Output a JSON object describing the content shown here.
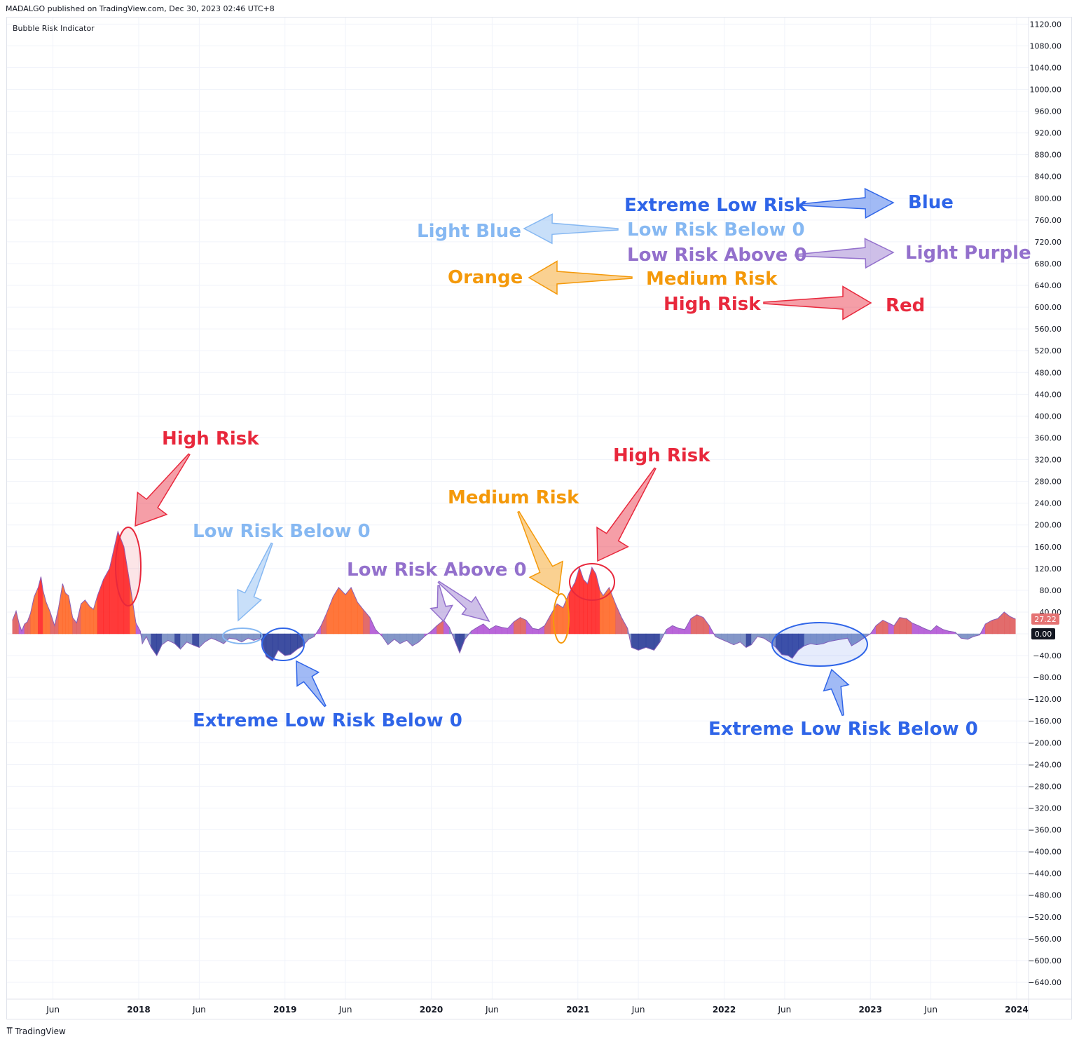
{
  "header": {
    "published": "MADALGO published on TradingView.com, Dec 30, 2023 02:46 UTC+8"
  },
  "indicator": {
    "title": "Bubble Risk Indicator"
  },
  "footer": {
    "brand": "TradingView",
    "logo_icon": "tradingview-logo-icon"
  },
  "colors": {
    "high": "#ff2a2a",
    "medium": "#ff6b2b",
    "lowAbove": "#b45ad6",
    "lowBelow": "#7a8fc4",
    "extremeLow": "#2e3f9a",
    "annot_blue": "#2f65e8",
    "annot_lightblue": "#86b8f2",
    "annot_purple": "#9370cc",
    "annot_orange": "#f4990a",
    "annot_red": "#e8283c"
  },
  "chart_data": {
    "type": "area",
    "ylim": [
      -660,
      1130
    ],
    "y_ticks": [
      1120,
      1080,
      1040,
      1000,
      960,
      920,
      880,
      840,
      800,
      760,
      720,
      680,
      640,
      600,
      560,
      520,
      480,
      440,
      400,
      360,
      320,
      280,
      240,
      200,
      160,
      120,
      80,
      40,
      0,
      -40,
      -80,
      -120,
      -160,
      -200,
      -240,
      -280,
      -320,
      -360,
      -400,
      -440,
      -480,
      -520,
      -560,
      -600,
      -640
    ],
    "x_ticks": [
      {
        "date": "2017-06-01",
        "label": "Jun",
        "bold": false
      },
      {
        "date": "2018-01-01",
        "label": "2018",
        "bold": true
      },
      {
        "date": "2018-06-01",
        "label": "Jun",
        "bold": false
      },
      {
        "date": "2019-01-01",
        "label": "2019",
        "bold": true
      },
      {
        "date": "2019-06-01",
        "label": "Jun",
        "bold": false
      },
      {
        "date": "2020-01-01",
        "label": "2020",
        "bold": true
      },
      {
        "date": "2020-06-01",
        "label": "Jun",
        "bold": false
      },
      {
        "date": "2021-01-01",
        "label": "2021",
        "bold": true
      },
      {
        "date": "2021-06-01",
        "label": "Jun",
        "bold": false
      },
      {
        "date": "2022-01-01",
        "label": "2022",
        "bold": true
      },
      {
        "date": "2022-06-01",
        "label": "Jun",
        "bold": false
      },
      {
        "date": "2023-01-01",
        "label": "2023",
        "bold": true
      },
      {
        "date": "2023-06-01",
        "label": "Jun",
        "bold": false
      },
      {
        "date": "2024-01-01",
        "label": "2024",
        "bold": true
      }
    ],
    "last_value_label": "27.22",
    "zero_label": "0.00",
    "series": [
      {
        "points": [
          [
            "2017-02-20",
            25
          ],
          [
            "2017-03-01",
            42
          ],
          [
            "2017-03-08",
            20
          ],
          [
            "2017-03-15",
            5
          ],
          [
            "2017-03-22",
            18
          ],
          [
            "2017-03-29",
            22
          ],
          [
            "2017-04-06",
            38
          ],
          [
            "2017-04-15",
            68
          ],
          [
            "2017-04-25",
            85
          ],
          [
            "2017-05-02",
            105
          ],
          [
            "2017-05-07",
            80
          ],
          [
            "2017-05-15",
            58
          ],
          [
            "2017-05-25",
            40
          ],
          [
            "2017-06-05",
            15
          ],
          [
            "2017-06-15",
            48
          ],
          [
            "2017-06-25",
            92
          ],
          [
            "2017-07-02",
            75
          ],
          [
            "2017-07-10",
            70
          ],
          [
            "2017-07-20",
            30
          ],
          [
            "2017-07-30",
            20
          ],
          [
            "2017-08-10",
            55
          ],
          [
            "2017-08-20",
            62
          ],
          [
            "2017-09-01",
            50
          ],
          [
            "2017-09-10",
            45
          ],
          [
            "2017-09-20",
            70
          ],
          [
            "2017-10-05",
            100
          ],
          [
            "2017-10-20",
            120
          ],
          [
            "2017-11-10",
            188
          ],
          [
            "2017-11-25",
            160
          ],
          [
            "2017-12-10",
            92
          ],
          [
            "2017-12-25",
            20
          ],
          [
            "2018-01-05",
            5
          ],
          [
            "2018-01-10",
            -18
          ],
          [
            "2018-01-20",
            -5
          ],
          [
            "2018-02-01",
            -25
          ],
          [
            "2018-02-15",
            -40
          ],
          [
            "2018-02-28",
            -20
          ],
          [
            "2018-03-15",
            -12
          ],
          [
            "2018-04-01",
            -18
          ],
          [
            "2018-04-15",
            -28
          ],
          [
            "2018-05-01",
            -15
          ],
          [
            "2018-05-15",
            -20
          ],
          [
            "2018-06-01",
            -25
          ],
          [
            "2018-06-15",
            -15
          ],
          [
            "2018-07-01",
            -8
          ],
          [
            "2018-07-15",
            -12
          ],
          [
            "2018-08-01",
            -18
          ],
          [
            "2018-08-15",
            -8
          ],
          [
            "2018-09-01",
            -10
          ],
          [
            "2018-09-15",
            -15
          ],
          [
            "2018-10-01",
            -8
          ],
          [
            "2018-10-15",
            -12
          ],
          [
            "2018-11-01",
            -8
          ],
          [
            "2018-11-15",
            -42
          ],
          [
            "2018-12-01",
            -50
          ],
          [
            "2018-12-15",
            -30
          ],
          [
            "2019-01-01",
            -40
          ],
          [
            "2019-01-15",
            -38
          ],
          [
            "2019-02-01",
            -28
          ],
          [
            "2019-02-15",
            -22
          ],
          [
            "2019-03-01",
            -10
          ],
          [
            "2019-03-15",
            -5
          ],
          [
            "2019-04-01",
            15
          ],
          [
            "2019-04-15",
            38
          ],
          [
            "2019-05-01",
            68
          ],
          [
            "2019-05-15",
            85
          ],
          [
            "2019-06-01",
            72
          ],
          [
            "2019-06-15",
            85
          ],
          [
            "2019-07-01",
            58
          ],
          [
            "2019-07-15",
            45
          ],
          [
            "2019-08-01",
            30
          ],
          [
            "2019-08-15",
            8
          ],
          [
            "2019-09-01",
            -5
          ],
          [
            "2019-09-15",
            -20
          ],
          [
            "2019-10-01",
            -10
          ],
          [
            "2019-10-15",
            -18
          ],
          [
            "2019-11-01",
            -12
          ],
          [
            "2019-11-15",
            -22
          ],
          [
            "2019-12-01",
            -15
          ],
          [
            "2019-12-15",
            -5
          ],
          [
            "2020-01-01",
            5
          ],
          [
            "2020-01-15",
            15
          ],
          [
            "2020-02-01",
            25
          ],
          [
            "2020-02-15",
            12
          ],
          [
            "2020-03-01",
            -15
          ],
          [
            "2020-03-12",
            -35
          ],
          [
            "2020-03-25",
            -10
          ],
          [
            "2020-04-10",
            5
          ],
          [
            "2020-04-25",
            12
          ],
          [
            "2020-05-10",
            18
          ],
          [
            "2020-05-25",
            8
          ],
          [
            "2020-06-10",
            15
          ],
          [
            "2020-06-25",
            12
          ],
          [
            "2020-07-10",
            10
          ],
          [
            "2020-07-25",
            22
          ],
          [
            "2020-08-10",
            30
          ],
          [
            "2020-08-25",
            25
          ],
          [
            "2020-09-10",
            10
          ],
          [
            "2020-09-25",
            8
          ],
          [
            "2020-10-10",
            15
          ],
          [
            "2020-10-25",
            35
          ],
          [
            "2020-11-10",
            55
          ],
          [
            "2020-11-25",
            48
          ],
          [
            "2020-12-10",
            75
          ],
          [
            "2020-12-25",
            95
          ],
          [
            "2021-01-05",
            122
          ],
          [
            "2021-01-15",
            100
          ],
          [
            "2021-01-25",
            92
          ],
          [
            "2021-02-05",
            122
          ],
          [
            "2021-02-15",
            110
          ],
          [
            "2021-02-25",
            80
          ],
          [
            "2021-03-05",
            70
          ],
          [
            "2021-03-20",
            85
          ],
          [
            "2021-04-05",
            55
          ],
          [
            "2021-04-20",
            30
          ],
          [
            "2021-05-05",
            10
          ],
          [
            "2021-05-15",
            -25
          ],
          [
            "2021-06-01",
            -30
          ],
          [
            "2021-06-20",
            -25
          ],
          [
            "2021-07-10",
            -30
          ],
          [
            "2021-07-25",
            -15
          ],
          [
            "2021-08-10",
            8
          ],
          [
            "2021-08-25",
            15
          ],
          [
            "2021-09-10",
            10
          ],
          [
            "2021-09-25",
            8
          ],
          [
            "2021-10-10",
            28
          ],
          [
            "2021-10-25",
            35
          ],
          [
            "2021-11-10",
            30
          ],
          [
            "2021-11-25",
            15
          ],
          [
            "2021-12-10",
            -5
          ],
          [
            "2021-12-25",
            -10
          ],
          [
            "2022-01-10",
            -15
          ],
          [
            "2022-01-25",
            -20
          ],
          [
            "2022-02-10",
            -15
          ],
          [
            "2022-02-25",
            -25
          ],
          [
            "2022-03-10",
            -20
          ],
          [
            "2022-03-25",
            -5
          ],
          [
            "2022-04-10",
            -8
          ],
          [
            "2022-04-25",
            -15
          ],
          [
            "2022-05-10",
            -25
          ],
          [
            "2022-05-25",
            -38
          ],
          [
            "2022-06-10",
            -40
          ],
          [
            "2022-06-20",
            -45
          ],
          [
            "2022-07-05",
            -30
          ],
          [
            "2022-07-20",
            -22
          ],
          [
            "2022-08-05",
            -18
          ],
          [
            "2022-08-20",
            -20
          ],
          [
            "2022-09-05",
            -18
          ],
          [
            "2022-09-20",
            -14
          ],
          [
            "2022-10-05",
            -12
          ],
          [
            "2022-10-20",
            -10
          ],
          [
            "2022-11-05",
            -8
          ],
          [
            "2022-11-15",
            -22
          ],
          [
            "2022-12-01",
            -15
          ],
          [
            "2022-12-15",
            -8
          ],
          [
            "2023-01-01",
            0
          ],
          [
            "2023-01-15",
            15
          ],
          [
            "2023-02-01",
            25
          ],
          [
            "2023-02-15",
            20
          ],
          [
            "2023-03-01",
            15
          ],
          [
            "2023-03-15",
            30
          ],
          [
            "2023-04-01",
            28
          ],
          [
            "2023-04-15",
            20
          ],
          [
            "2023-05-01",
            15
          ],
          [
            "2023-05-15",
            10
          ],
          [
            "2023-06-01",
            5
          ],
          [
            "2023-06-15",
            15
          ],
          [
            "2023-07-01",
            8
          ],
          [
            "2023-07-15",
            5
          ],
          [
            "2023-08-01",
            3
          ],
          [
            "2023-08-15",
            -8
          ],
          [
            "2023-09-01",
            -10
          ],
          [
            "2023-09-15",
            -5
          ],
          [
            "2023-10-01",
            -2
          ],
          [
            "2023-10-15",
            18
          ],
          [
            "2023-11-01",
            25
          ],
          [
            "2023-11-15",
            28
          ],
          [
            "2023-12-01",
            40
          ],
          [
            "2023-12-15",
            32
          ],
          [
            "2023-12-29",
            27.22
          ]
        ]
      }
    ]
  },
  "annotations": [
    {
      "id": "legend-extreme-low",
      "text": "Extreme Low Risk",
      "color": "annot_blue",
      "x": 891,
      "y": 292
    },
    {
      "id": "legend-blue",
      "text": "Blue",
      "color": "annot_blue",
      "x": 1296,
      "y": 288
    },
    {
      "id": "legend-light-blue",
      "text": "Light Blue",
      "color": "annot_lightblue",
      "x": 595,
      "y": 329
    },
    {
      "id": "legend-low-below",
      "text": "Low Risk Below 0",
      "color": "annot_lightblue",
      "x": 895,
      "y": 327
    },
    {
      "id": "legend-low-above",
      "text": "Low Risk Above 0",
      "color": "annot_purple",
      "x": 895,
      "y": 363
    },
    {
      "id": "legend-light-purple",
      "text": "Light Purple",
      "color": "annot_purple",
      "x": 1292,
      "y": 360
    },
    {
      "id": "legend-orange",
      "text": "Orange",
      "color": "annot_orange",
      "x": 639,
      "y": 395
    },
    {
      "id": "legend-medium",
      "text": "Medium Risk",
      "color": "annot_orange",
      "x": 922,
      "y": 397
    },
    {
      "id": "legend-high",
      "text": "High Risk",
      "color": "annot_red",
      "x": 947,
      "y": 433
    },
    {
      "id": "legend-red",
      "text": "Red",
      "color": "annot_red",
      "x": 1264,
      "y": 435
    },
    {
      "id": "note-high-2017",
      "text": "High Risk",
      "color": "annot_red",
      "x": 231,
      "y": 625
    },
    {
      "id": "note-low-below-2018",
      "text": "Low Risk Below 0",
      "color": "annot_lightblue",
      "x": 275,
      "y": 757
    },
    {
      "id": "note-low-above-2020",
      "text": "Low Risk Above 0",
      "color": "annot_purple",
      "x": 495,
      "y": 812
    },
    {
      "id": "note-medium-2020",
      "text": "Medium Risk",
      "color": "annot_orange",
      "x": 639,
      "y": 709
    },
    {
      "id": "note-high-2021",
      "text": "High Risk",
      "color": "annot_red",
      "x": 875,
      "y": 649
    },
    {
      "id": "note-extreme-low-2018",
      "text": "Extreme Low Risk Below 0",
      "color": "annot_blue",
      "x": 275,
      "y": 1027
    },
    {
      "id": "note-extreme-low-2022",
      "text": "Extreme Low Risk Below 0",
      "color": "annot_blue",
      "x": 1011,
      "y": 1039
    }
  ]
}
